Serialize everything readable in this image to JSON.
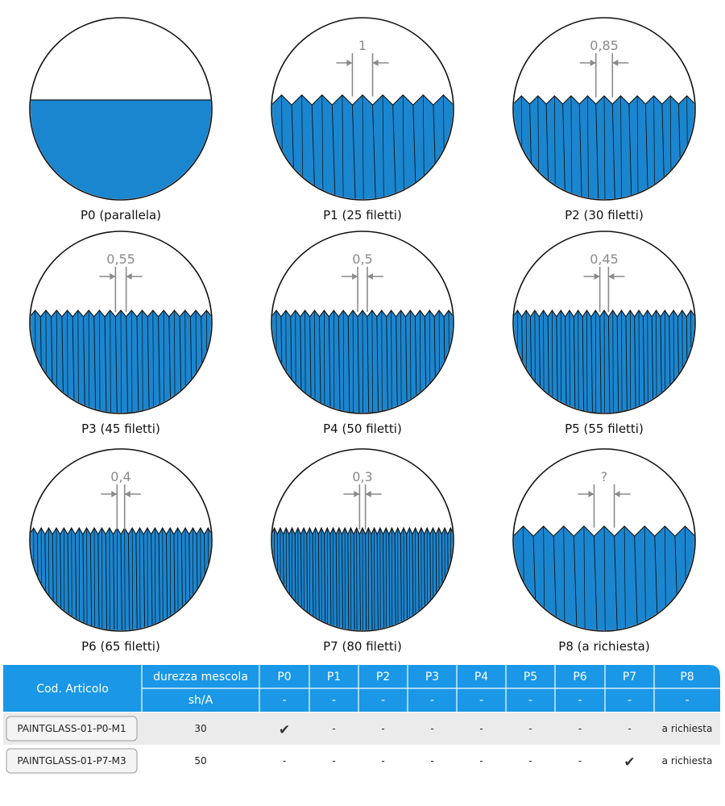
{
  "profiles": [
    {
      "id": "P0",
      "caption": "P0 (parallela)",
      "pitch_label": "",
      "teeth": 0
    },
    {
      "id": "P1",
      "caption": "P1 (25 filetti)",
      "pitch_label": "1",
      "teeth": 9
    },
    {
      "id": "P2",
      "caption": "P2 (30 filetti)",
      "pitch_label": "0,85",
      "teeth": 11
    },
    {
      "id": "P3",
      "caption": "P3 (45 filetti)",
      "pitch_label": "0,55",
      "teeth": 17
    },
    {
      "id": "P4",
      "caption": "P4 (50 filetti)",
      "pitch_label": "0,5",
      "teeth": 19
    },
    {
      "id": "P5",
      "caption": "P5 (55 filetti)",
      "pitch_label": "0,45",
      "teeth": 21
    },
    {
      "id": "P6",
      "caption": "P6 (65 filetti)",
      "pitch_label": "0,4",
      "teeth": 24
    },
    {
      "id": "P7",
      "caption": "P7 (80 filetti)",
      "pitch_label": "0,3",
      "teeth": 31
    },
    {
      "id": "P8",
      "caption": "P8 (a richiesta)",
      "pitch_label": "?",
      "teeth": 9
    }
  ],
  "table": {
    "header": {
      "code": "Cod. Articolo",
      "hardness": "durezza mescola",
      "unit": "sh/A",
      "profiles": [
        "P0",
        "P1",
        "P2",
        "P3",
        "P4",
        "P5",
        "P6",
        "P7",
        "P8"
      ],
      "subrow": [
        "-",
        "-",
        "-",
        "-",
        "-",
        "-",
        "-",
        "-",
        "-"
      ]
    },
    "rows": [
      {
        "code": "PAINTGLASS-01-P0-M1",
        "hardness": "30",
        "cells": [
          "✔",
          "-",
          "-",
          "-",
          "-",
          "-",
          "-",
          "-",
          "a richiesta"
        ]
      },
      {
        "code": "PAINTGLASS-01-P7-M3",
        "hardness": "50",
        "cells": [
          "-",
          "-",
          "-",
          "-",
          "-",
          "-",
          "-",
          "✔",
          "a richiesta"
        ]
      }
    ]
  },
  "colors": {
    "fill_blue": "#1a86d0",
    "header_blue": "#1a97e6",
    "row_gray": "#ebebeb",
    "dim_gray": "#8a8a8a"
  }
}
